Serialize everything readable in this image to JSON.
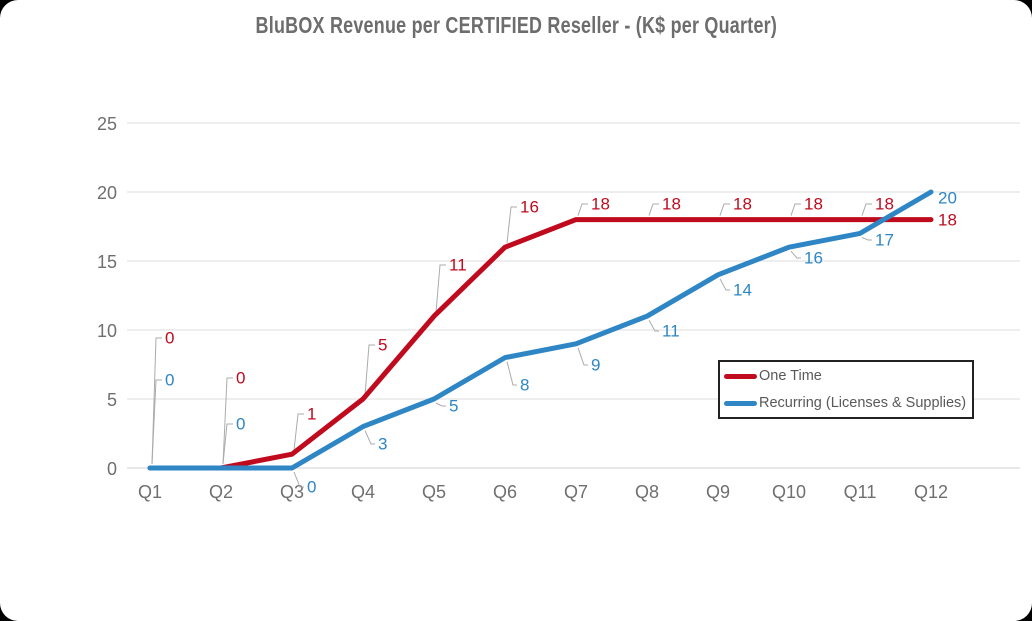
{
  "chart_data": {
    "type": "line",
    "title": "BluBOX Revenue per CERTIFIED Reseller - (K$ per Quarter)",
    "categories": [
      "Q1",
      "Q2",
      "Q3",
      "Q4",
      "Q5",
      "Q6",
      "Q7",
      "Q8",
      "Q9",
      "Q10",
      "Q11",
      "Q12"
    ],
    "series": [
      {
        "name": "One Time",
        "color": "#C00A1E",
        "values": [
          0,
          0,
          1,
          5,
          11,
          16,
          18,
          18,
          18,
          18,
          18,
          18
        ]
      },
      {
        "name": "Recurring (Licenses & Supplies)",
        "color": "#2E86C5",
        "values": [
          0,
          0,
          0,
          3,
          5,
          8,
          9,
          11,
          14,
          16,
          17,
          20
        ]
      }
    ],
    "ylim": [
      0,
      25
    ],
    "yticks": [
      0,
      5,
      10,
      15,
      20,
      25
    ],
    "xlabel": "",
    "ylabel": "",
    "grid": true,
    "data_labels": true,
    "legend_position": "middle-right",
    "colors": {
      "grid": "#dedede",
      "axis_text": "#6f6f6f",
      "leader_line": "#ababab",
      "legend_border": "#222222",
      "title_text": "#6d6d6d"
    }
  }
}
